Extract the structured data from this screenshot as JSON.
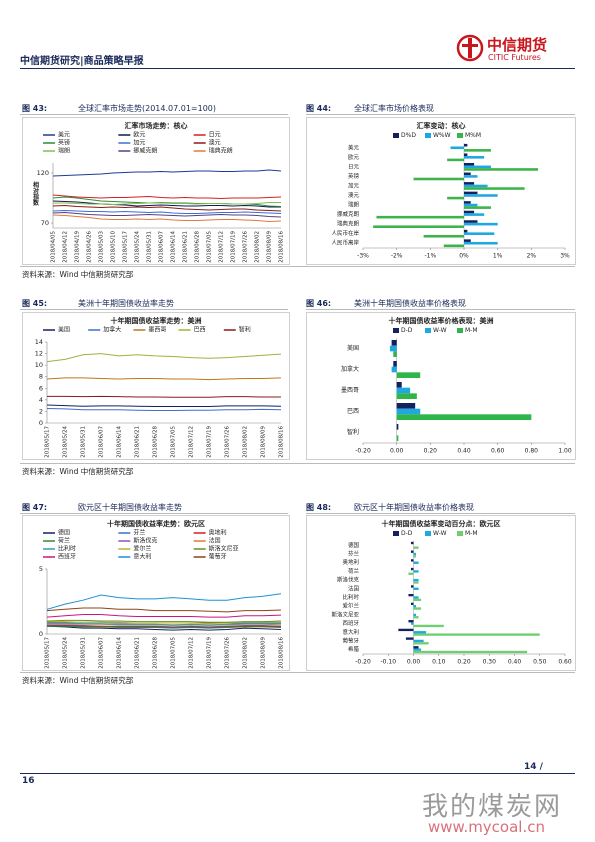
{
  "header": {
    "title": "中信期货研究|商品策略早报",
    "logo_cn": "中信期货",
    "logo_en": "CITIC Futures"
  },
  "sources": [
    "资料来源：Wind  中信期货研究部",
    "资料来源：Wind  中信期货研究部",
    "资料来源：Wind  中信期货研究部"
  ],
  "footer": {
    "page_right": "14 /",
    "page_number": "16"
  },
  "watermark": {
    "cn": "我的煤炭网",
    "url": "www.mycoal.cn"
  },
  "chart_data": [
    {
      "type": "line",
      "figure": "图 43:",
      "caption": "全球汇率市场走势(2014.07.01=100)",
      "title": "汇率市场走势：核心",
      "ylabel": "相对指数",
      "categories": [
        "2018/04/05",
        "2018/04/12",
        "2018/04/19",
        "2018/04/26",
        "2018/05/03",
        "2018/05/10",
        "2018/05/17",
        "2018/05/24",
        "2018/05/31",
        "2018/06/07",
        "2018/06/14",
        "2018/06/21",
        "2018/06/28",
        "2018/07/05",
        "2018/07/12",
        "2018/07/19",
        "2018/07/26",
        "2018/08/02",
        "2018/08/09",
        "2018/08/16"
      ],
      "ylim": [
        65,
        130
      ],
      "yticks": [
        70,
        120
      ],
      "series": [
        {
          "name": "美元",
          "color": "#1f3a93",
          "values": [
            117,
            117.5,
            118,
            118.5,
            119,
            120,
            120.5,
            121,
            121,
            121.5,
            121,
            121.5,
            122,
            122,
            121.5,
            121.5,
            122,
            122,
            123,
            122
          ]
        },
        {
          "name": "欧元",
          "color": "#0d1b4c",
          "values": [
            92,
            91.5,
            91,
            90,
            89,
            88.5,
            88,
            87,
            87.5,
            88,
            87.5,
            87,
            87,
            87.5,
            87.5,
            87,
            87.5,
            87,
            86,
            86
          ]
        },
        {
          "name": "日元",
          "color": "#d42020",
          "values": [
            98,
            97,
            96,
            95.5,
            95,
            95.5,
            95.5,
            96,
            96.5,
            95.5,
            95,
            95.5,
            95,
            95,
            94.5,
            95,
            95,
            95,
            95.5,
            96
          ]
        },
        {
          "name": "英镑",
          "color": "#2e8b3d",
          "values": [
            95,
            96,
            95,
            93.5,
            92,
            91.5,
            91,
            90.5,
            90,
            90.5,
            90,
            90,
            89.5,
            89.5,
            89.5,
            89,
            89,
            88.5,
            87,
            86.5
          ]
        },
        {
          "name": "加元",
          "color": "#3b6fd1",
          "values": [
            82,
            82.5,
            82,
            81.5,
            81.5,
            81,
            81.5,
            81,
            80.5,
            81,
            80,
            79.5,
            79.5,
            80,
            80.5,
            80.5,
            81,
            80.5,
            80,
            79.5
          ]
        },
        {
          "name": "澳元",
          "color": "#8b1a1a",
          "values": [
            87,
            87.5,
            86.5,
            86,
            85.5,
            86,
            85.5,
            86,
            85.5,
            86,
            85,
            84,
            83.5,
            83,
            83.5,
            84,
            84,
            83,
            82.5,
            82
          ]
        },
        {
          "name": "瑞朗",
          "color": "#7fbf4f",
          "values": [
            90,
            90,
            89.5,
            89,
            89,
            88.5,
            89,
            89.5,
            90,
            90,
            89.5,
            89.5,
            89,
            89.5,
            89.5,
            89,
            89,
            89.5,
            90.5,
            90.5
          ]
        },
        {
          "name": "挪威克朗",
          "color": "#5a3d8a",
          "values": [
            80,
            80.5,
            79.5,
            78.5,
            78,
            77.5,
            77.5,
            78,
            78.5,
            78,
            77.5,
            77,
            77.5,
            78,
            78.5,
            78,
            78,
            77.5,
            76.5,
            76
          ]
        },
        {
          "name": "瑞典克朗",
          "color": "#e07b39",
          "values": [
            78,
            77.5,
            76.5,
            75.5,
            74,
            73.5,
            73.5,
            74,
            73.5,
            74,
            73,
            72.5,
            72.5,
            73,
            73.5,
            73.5,
            73,
            72.5,
            71.5,
            72
          ]
        }
      ]
    },
    {
      "type": "bar",
      "horizontal": true,
      "figure": "图 44:",
      "caption": "全球汇率市场价格表现",
      "title": "汇率变动：核心",
      "categories": [
        "美元",
        "欧元",
        "日元",
        "英镑",
        "加元",
        "澳元",
        "瑞朗",
        "挪威克朗",
        "瑞典克朗",
        "人民币在岸",
        "人民币离岸"
      ],
      "xlim": [
        -3,
        3
      ],
      "xticks": [
        {
          "value": -3,
          "label": "-3%"
        },
        {
          "value": -2,
          "label": "-2%"
        },
        {
          "value": -1,
          "label": "-1%"
        },
        {
          "value": 0,
          "label": "0%"
        },
        {
          "value": 1,
          "label": "1%"
        },
        {
          "value": 2,
          "label": "2%"
        },
        {
          "value": 3,
          "label": "3%"
        }
      ],
      "series": [
        {
          "name": "D%D",
          "color": "#14215e",
          "values": [
            0.1,
            0.1,
            0.3,
            0.2,
            0.3,
            0.4,
            0.2,
            0.3,
            0.4,
            0.1,
            0.2
          ]
        },
        {
          "name": "W%W",
          "color": "#1ea7e1",
          "values": [
            -0.4,
            0.6,
            0.8,
            0.4,
            0.7,
            1.0,
            0.4,
            0.6,
            1.0,
            0.9,
            1.0
          ]
        },
        {
          "name": "M%M",
          "color": "#3cb44b",
          "values": [
            0.8,
            -0.5,
            2.2,
            -1.5,
            1.8,
            -0.5,
            0.8,
            -2.6,
            -2.7,
            -1.2,
            -0.6
          ]
        }
      ]
    },
    {
      "type": "line",
      "figure": "图 45:",
      "caption": "美洲十年期国债收益率走势",
      "title": "十年期国债收益率走势：美洲",
      "categories": [
        "2018/05/17",
        "2018/05/24",
        "2018/05/31",
        "2018/06/07",
        "2018/06/14",
        "2018/06/21",
        "2018/06/28",
        "2018/07/05",
        "2018/07/12",
        "2018/07/19",
        "2018/07/26",
        "2018/08/02",
        "2018/08/09",
        "2018/08/16"
      ],
      "ylim": [
        0,
        14
      ],
      "yticks": [
        0,
        2,
        4,
        6,
        8,
        10,
        12,
        14
      ],
      "series": [
        {
          "name": "美国",
          "color": "#14215e",
          "values": [
            3.1,
            3.0,
            2.9,
            2.95,
            2.95,
            2.9,
            2.85,
            2.85,
            2.85,
            2.85,
            2.95,
            2.95,
            2.95,
            2.9
          ]
        },
        {
          "name": "加拿大",
          "color": "#3b6fd1",
          "values": [
            2.5,
            2.45,
            2.3,
            2.3,
            2.3,
            2.2,
            2.15,
            2.15,
            2.2,
            2.2,
            2.3,
            2.3,
            2.35,
            2.3
          ]
        },
        {
          "name": "墨西哥",
          "color": "#c0761e",
          "values": [
            7.6,
            7.8,
            7.8,
            7.7,
            7.6,
            7.7,
            7.7,
            7.6,
            7.6,
            7.5,
            7.6,
            7.7,
            7.7,
            7.8
          ]
        },
        {
          "name": "巴西",
          "color": "#9bb53c",
          "values": [
            10.6,
            11.0,
            11.8,
            12.0,
            11.6,
            11.8,
            11.6,
            11.5,
            11.3,
            11.2,
            11.3,
            11.5,
            11.7,
            11.9
          ]
        },
        {
          "name": "智利",
          "color": "#8b1a1a",
          "values": [
            4.6,
            4.6,
            4.55,
            4.6,
            4.55,
            4.5,
            4.5,
            4.45,
            4.45,
            4.45,
            4.55,
            4.55,
            4.5,
            4.5
          ]
        }
      ]
    },
    {
      "type": "bar",
      "horizontal": true,
      "figure": "图 46:",
      "caption": "美洲十年期国债收益率价格表现",
      "title": "十年期国债收益率价格表现：美洲",
      "categories": [
        "美国",
        "加拿大",
        "墨西哥",
        "巴西",
        "智利"
      ],
      "xlim": [
        -0.2,
        1.0
      ],
      "xticks": [
        {
          "value": -0.2,
          "label": "-0.20"
        },
        {
          "value": 0,
          "label": "0.00"
        },
        {
          "value": 0.2,
          "label": "0.20"
        },
        {
          "value": 0.4,
          "label": "0.40"
        },
        {
          "value": 0.6,
          "label": "0.60"
        },
        {
          "value": 0.8,
          "label": "0.80"
        },
        {
          "value": 1.0,
          "label": "1.00"
        }
      ],
      "series": [
        {
          "name": "D-D",
          "color": "#14215e",
          "values": [
            -0.03,
            -0.02,
            0.03,
            0.11,
            0.01
          ]
        },
        {
          "name": "W-W",
          "color": "#1ea7e1",
          "values": [
            -0.04,
            -0.03,
            0.08,
            0.14,
            0.0
          ]
        },
        {
          "name": "M-M",
          "color": "#2fb54a",
          "values": [
            -0.02,
            0.14,
            0.12,
            0.8,
            0.01
          ]
        }
      ]
    },
    {
      "type": "line",
      "figure": "图 47:",
      "caption": "欧元区十年期国债收益率走势",
      "title": "十年期国债收益率走势：欧元区",
      "categories": [
        "2018/05/17",
        "2018/05/24",
        "2018/05/31",
        "2018/06/07",
        "2018/06/14",
        "2018/06/21",
        "2018/06/28",
        "2018/07/05",
        "2018/07/12",
        "2018/07/19",
        "2018/07/26",
        "2018/08/02",
        "2018/08/09",
        "2018/08/16"
      ],
      "ylim": [
        0,
        5
      ],
      "yticks": [
        0,
        5
      ],
      "series": [
        {
          "name": "德国",
          "color": "#14215e",
          "values": [
            0.6,
            0.55,
            0.45,
            0.45,
            0.4,
            0.4,
            0.35,
            0.3,
            0.35,
            0.3,
            0.35,
            0.45,
            0.4,
            0.35
          ]
        },
        {
          "name": "芬兰",
          "color": "#3b6fd1",
          "values": [
            0.7,
            0.7,
            0.65,
            0.6,
            0.6,
            0.6,
            0.6,
            0.55,
            0.6,
            0.55,
            0.6,
            0.65,
            0.65,
            0.6
          ]
        },
        {
          "name": "奥地利",
          "color": "#d42020",
          "values": [
            0.65,
            0.65,
            0.6,
            0.6,
            0.55,
            0.55,
            0.55,
            0.5,
            0.55,
            0.5,
            0.55,
            0.6,
            0.6,
            0.55
          ]
        },
        {
          "name": "荷兰",
          "color": "#2e8b3d",
          "values": [
            0.6,
            0.6,
            0.55,
            0.55,
            0.5,
            0.5,
            0.5,
            0.45,
            0.5,
            0.45,
            0.5,
            0.55,
            0.55,
            0.5
          ]
        },
        {
          "name": "斯洛伐克",
          "color": "#8a56b8",
          "values": [
            0.9,
            0.9,
            0.9,
            0.9,
            0.85,
            0.85,
            0.85,
            0.85,
            0.85,
            0.85,
            0.85,
            0.85,
            0.85,
            0.85
          ]
        },
        {
          "name": "法国",
          "color": "#e07b39",
          "values": [
            0.8,
            0.8,
            0.75,
            0.75,
            0.7,
            0.7,
            0.7,
            0.65,
            0.7,
            0.65,
            0.7,
            0.75,
            0.75,
            0.7
          ]
        },
        {
          "name": "比利时",
          "color": "#2aa1b3",
          "values": [
            0.85,
            0.85,
            0.8,
            0.8,
            0.75,
            0.75,
            0.75,
            0.7,
            0.75,
            0.7,
            0.75,
            0.8,
            0.8,
            0.8
          ]
        },
        {
          "name": "爱尔兰",
          "color": "#b5b52a",
          "values": [
            0.95,
            0.95,
            0.9,
            0.9,
            0.9,
            0.85,
            0.85,
            0.85,
            0.85,
            0.8,
            0.85,
            0.9,
            0.9,
            0.9
          ]
        },
        {
          "name": "斯洛文尼亚",
          "color": "#6b8e23",
          "values": [
            1.0,
            1.05,
            1.05,
            1.0,
            1.0,
            0.95,
            0.95,
            0.95,
            0.95,
            0.9,
            0.9,
            0.95,
            0.95,
            1.0
          ]
        },
        {
          "name": "西班牙",
          "color": "#c71585",
          "values": [
            1.3,
            1.4,
            1.5,
            1.5,
            1.4,
            1.35,
            1.35,
            1.35,
            1.35,
            1.3,
            1.3,
            1.4,
            1.4,
            1.45
          ]
        },
        {
          "name": "意大利",
          "color": "#1e90d6",
          "values": [
            1.9,
            2.3,
            2.6,
            3.0,
            2.8,
            2.7,
            2.7,
            2.8,
            2.7,
            2.6,
            2.6,
            2.8,
            2.9,
            3.1
          ]
        },
        {
          "name": "葡萄牙",
          "color": "#8b4513",
          "values": [
            1.8,
            1.9,
            2.0,
            2.0,
            1.9,
            1.9,
            1.8,
            1.8,
            1.8,
            1.75,
            1.7,
            1.8,
            1.8,
            1.85
          ]
        }
      ]
    },
    {
      "type": "bar",
      "horizontal": true,
      "figure": "图 48:",
      "caption": "欧元区十年期国债收益率价格表现",
      "title": "十年期国债收益率变动百分点：欧元区",
      "categories": [
        "德国",
        "芬兰",
        "奥地利",
        "荷兰",
        "斯洛伐克",
        "法国",
        "比利时",
        "爱尔兰",
        "斯洛文尼亚",
        "西班牙",
        "意大利",
        "葡萄牙",
        "希腊"
      ],
      "xlim": [
        -0.2,
        0.6
      ],
      "xticks": [
        {
          "value": -0.2,
          "label": "-0.20"
        },
        {
          "value": -0.1,
          "label": "-0.10"
        },
        {
          "value": 0,
          "label": "0.00"
        },
        {
          "value": 0.1,
          "label": "0.10"
        },
        {
          "value": 0.2,
          "label": "0.20"
        },
        {
          "value": 0.3,
          "label": "0.30"
        },
        {
          "value": 0.4,
          "label": "0.40"
        },
        {
          "value": 0.5,
          "label": "0.50"
        },
        {
          "value": 0.6,
          "label": "0.60"
        }
      ],
      "series": [
        {
          "name": "D-D",
          "color": "#14215e",
          "values": [
            -0.01,
            -0.01,
            -0.01,
            -0.01,
            0.0,
            -0.01,
            -0.02,
            -0.01,
            0.0,
            -0.02,
            -0.06,
            -0.03,
            0.02
          ]
        },
        {
          "name": "W-W",
          "color": "#1ea7e1",
          "values": [
            0.0,
            0.01,
            0.02,
            0.02,
            0.02,
            0.02,
            0.02,
            0.01,
            0.01,
            -0.01,
            0.05,
            0.04,
            0.03
          ]
        },
        {
          "name": "M-M",
          "color": "#6fcf6f",
          "values": [
            0.02,
            0.01,
            0.0,
            -0.02,
            0.02,
            0.0,
            0.03,
            0.03,
            0.02,
            0.12,
            0.5,
            0.06,
            0.45
          ]
        }
      ]
    }
  ]
}
